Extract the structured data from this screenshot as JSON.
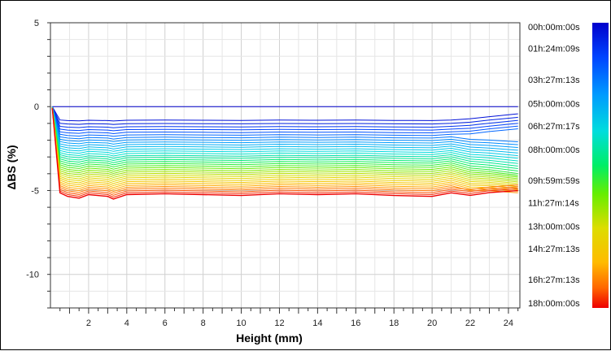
{
  "chart_data": {
    "type": "line",
    "title": "",
    "xlabel": "Height (mm)",
    "ylabel": "ΔBS (%)",
    "xlim": [
      0,
      24.6
    ],
    "ylim": [
      -12,
      5
    ],
    "x_ticks": [
      2,
      4,
      6,
      8,
      10,
      12,
      14,
      16,
      18,
      20,
      22,
      24
    ],
    "y_ticks": [
      5,
      0,
      -5,
      -10
    ],
    "grid": true,
    "legend": "colorbar-right",
    "colorbar": {
      "labels": [
        "00h:00m:00s",
        "01h:24m:09s",
        "03h:27m:13s",
        "05h:00m:00s",
        "06h:27m:17s",
        "08h:00m:00s",
        "09h:59m:59s",
        "11h:27m:14s",
        "13h:00m:00s",
        "14h:27m:13s",
        "16h:27m:13s",
        "18h:00m:00s"
      ],
      "label_times_h": [
        0,
        1.403,
        3.454,
        5.0,
        6.455,
        8.0,
        10.0,
        11.454,
        13.0,
        14.454,
        16.454,
        18.0
      ],
      "colors": [
        "#0000cc",
        "#0044ff",
        "#0099ff",
        "#00dddd",
        "#00ee66",
        "#66ee00",
        "#dddd00",
        "#ffbb00",
        "#ff6600",
        "#ee0000"
      ]
    },
    "series_count": 36,
    "x": [
      0.1,
      0.5,
      0.9,
      1.5,
      2.0,
      3.0,
      3.3,
      4.0,
      6.0,
      8.0,
      10.0,
      12.0,
      14.0,
      16.0,
      18.0,
      20.0,
      21.0,
      22.0,
      23.0,
      24.5
    ],
    "plateau_profile": [
      0.88,
      0.96,
      1.0,
      1.02,
      0.98,
      1.0,
      1.03,
      0.98,
      0.97,
      0.98,
      0.99,
      0.97,
      0.98,
      0.97,
      0.99,
      1.0,
      0.96,
      1.01,
      0.99,
      1.0
    ],
    "series": [
      {
        "time": "00h:00m:00s",
        "plateau": 0.0
      },
      {
        "time": "18h:00m:00s",
        "plateau": -5.3,
        "end": -5.05
      },
      {
        "time": "09h:59m:59s",
        "plateau": -4.2,
        "end": -4.6
      },
      {
        "time": "05h:00m:00s",
        "plateau": -2.6,
        "end": -3.3
      },
      {
        "time": "01h:24m:09s",
        "plateau": -0.7,
        "end": -0.5
      }
    ]
  }
}
